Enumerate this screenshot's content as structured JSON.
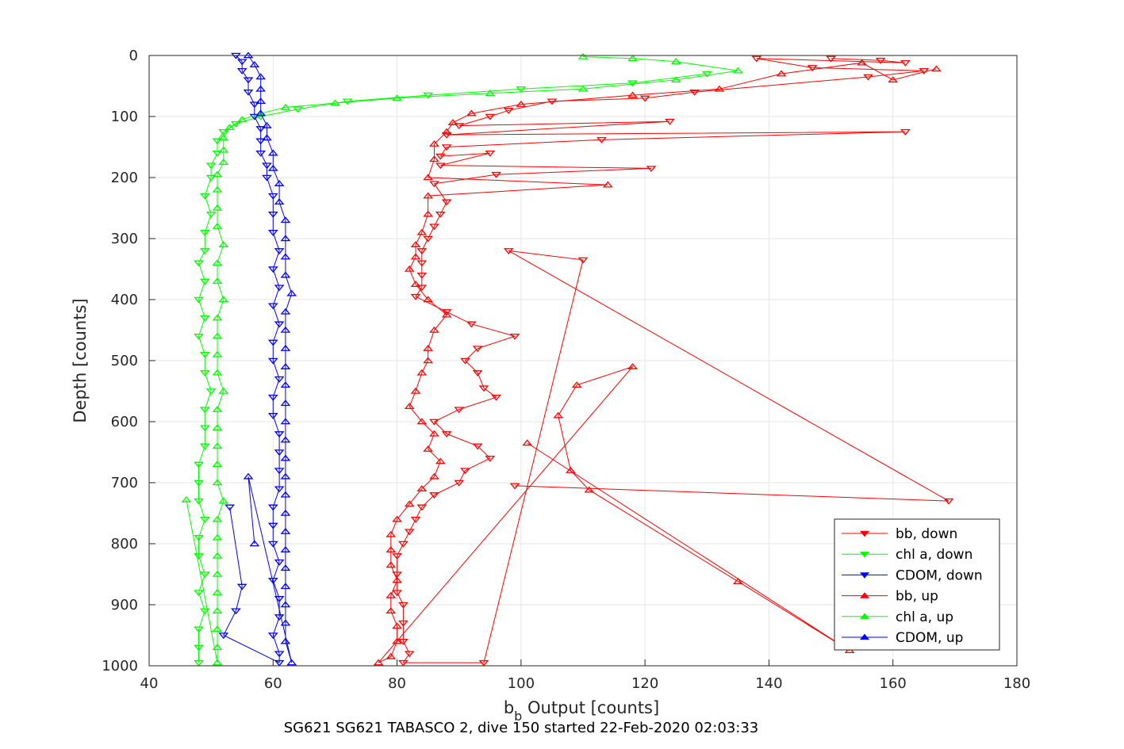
{
  "chart_data": {
    "type": "scatter",
    "title": "",
    "caption": "SG621 SG621 TABASCO 2, dive 150 started 22-Feb-2020 02:03:33",
    "xlabel_main": "b",
    "xlabel_sub": "b",
    "xlabel_rest": " Output [counts]",
    "ylabel": "Depth [counts]",
    "xlim": [
      40,
      180
    ],
    "ylim": [
      0,
      1000
    ],
    "y_reversed": true,
    "xticks": [
      40,
      60,
      80,
      100,
      120,
      140,
      160,
      180
    ],
    "yticks": [
      0,
      100,
      200,
      300,
      400,
      500,
      600,
      700,
      800,
      900,
      1000
    ],
    "grid": true,
    "legend_position": "bottom-right",
    "series": [
      {
        "name": "bb, down",
        "color": "#ff0000",
        "marker": "triangle-down",
        "points": [
          [
            150,
            5
          ],
          [
            158,
            8
          ],
          [
            162,
            12
          ],
          [
            138,
            5
          ],
          [
            147,
            20
          ],
          [
            165,
            25
          ],
          [
            156,
            35
          ],
          [
            128,
            60
          ],
          [
            120,
            70
          ],
          [
            105,
            75
          ],
          [
            98,
            90
          ],
          [
            95,
            100
          ],
          [
            90,
            115
          ],
          [
            124,
            108
          ],
          [
            88,
            130
          ],
          [
            162,
            125
          ],
          [
            113,
            138
          ],
          [
            88,
            150
          ],
          [
            87,
            165
          ],
          [
            95,
            160
          ],
          [
            87,
            180
          ],
          [
            121,
            185
          ],
          [
            96,
            195
          ],
          [
            86,
            210
          ],
          [
            88,
            240
          ],
          [
            87,
            260
          ],
          [
            86,
            280
          ],
          [
            85,
            300
          ],
          [
            84,
            320
          ],
          [
            84,
            340
          ],
          [
            84,
            360
          ],
          [
            84,
            380
          ],
          [
            83,
            395
          ],
          [
            88,
            420
          ],
          [
            92,
            440
          ],
          [
            99,
            460
          ],
          [
            93,
            480
          ],
          [
            91,
            500
          ],
          [
            93,
            520
          ],
          [
            94,
            545
          ],
          [
            96,
            560
          ],
          [
            90,
            580
          ],
          [
            86,
            600
          ],
          [
            88,
            620
          ],
          [
            93,
            640
          ],
          [
            95,
            660
          ],
          [
            91,
            680
          ],
          [
            90,
            700
          ],
          [
            86,
            720
          ],
          [
            84,
            740
          ],
          [
            83,
            760
          ],
          [
            82,
            780
          ],
          [
            81,
            800
          ],
          [
            80,
            820
          ],
          [
            80,
            850
          ],
          [
            80,
            880
          ],
          [
            81,
            900
          ],
          [
            81,
            930
          ],
          [
            81,
            960
          ],
          [
            82,
            980
          ],
          [
            81,
            995
          ],
          [
            94,
            995
          ],
          [
            110,
            335
          ],
          [
            98,
            320
          ],
          [
            169,
            730
          ],
          [
            99,
            705
          ]
        ]
      },
      {
        "name": "chl a, down",
        "color": "#00ff00",
        "marker": "triangle-down",
        "points": [
          [
            130,
            30
          ],
          [
            118,
            45
          ],
          [
            100,
            55
          ],
          [
            85,
            65
          ],
          [
            72,
            75
          ],
          [
            64,
            88
          ],
          [
            58,
            100
          ],
          [
            54,
            112
          ],
          [
            52,
            125
          ],
          [
            51,
            140
          ],
          [
            51,
            160
          ],
          [
            50,
            180
          ],
          [
            50,
            200
          ],
          [
            49,
            230
          ],
          [
            50,
            260
          ],
          [
            49,
            290
          ],
          [
            49,
            320
          ],
          [
            48,
            340
          ],
          [
            49,
            370
          ],
          [
            48,
            400
          ],
          [
            49,
            430
          ],
          [
            48,
            460
          ],
          [
            49,
            490
          ],
          [
            49,
            520
          ],
          [
            50,
            550
          ],
          [
            49,
            580
          ],
          [
            49,
            610
          ],
          [
            49,
            640
          ],
          [
            48,
            670
          ],
          [
            48,
            700
          ],
          [
            48,
            730
          ],
          [
            49,
            760
          ],
          [
            48,
            790
          ],
          [
            48,
            820
          ],
          [
            49,
            850
          ],
          [
            48,
            880
          ],
          [
            49,
            910
          ],
          [
            48,
            940
          ],
          [
            48,
            970
          ],
          [
            48,
            995
          ]
        ]
      },
      {
        "name": "CDOM, down",
        "color": "#0000ff",
        "marker": "triangle-down",
        "points": [
          [
            54,
            0
          ],
          [
            55,
            10
          ],
          [
            55,
            25
          ],
          [
            56,
            40
          ],
          [
            56,
            60
          ],
          [
            57,
            80
          ],
          [
            57,
            100
          ],
          [
            58,
            120
          ],
          [
            58,
            140
          ],
          [
            58,
            160
          ],
          [
            59,
            180
          ],
          [
            59,
            200
          ],
          [
            60,
            230
          ],
          [
            60,
            260
          ],
          [
            60,
            290
          ],
          [
            61,
            320
          ],
          [
            60,
            350
          ],
          [
            61,
            380
          ],
          [
            60,
            410
          ],
          [
            61,
            440
          ],
          [
            60,
            470
          ],
          [
            60,
            500
          ],
          [
            61,
            530
          ],
          [
            60,
            560
          ],
          [
            60,
            590
          ],
          [
            61,
            620
          ],
          [
            61,
            650
          ],
          [
            61,
            680
          ],
          [
            61,
            710
          ],
          [
            60,
            740
          ],
          [
            60,
            770
          ],
          [
            60,
            800
          ],
          [
            61,
            830
          ],
          [
            60,
            860
          ],
          [
            61,
            890
          ],
          [
            61,
            920
          ],
          [
            60,
            950
          ],
          [
            61,
            980
          ],
          [
            61,
            995
          ],
          [
            52,
            950
          ],
          [
            54,
            910
          ],
          [
            55,
            870
          ],
          [
            53,
            740
          ]
        ]
      },
      {
        "name": "bb, up",
        "color": "#ff0000",
        "marker": "triangle-up",
        "points": [
          [
            167,
            22
          ],
          [
            160,
            40
          ],
          [
            155,
            12
          ],
          [
            142,
            30
          ],
          [
            132,
            55
          ],
          [
            118,
            65
          ],
          [
            100,
            80
          ],
          [
            92,
            95
          ],
          [
            89,
            110
          ],
          [
            88,
            125
          ],
          [
            86,
            145
          ],
          [
            86,
            170
          ],
          [
            85,
            200
          ],
          [
            114,
            212
          ],
          [
            85,
            230
          ],
          [
            85,
            260
          ],
          [
            84,
            290
          ],
          [
            83,
            310
          ],
          [
            83,
            330
          ],
          [
            82,
            350
          ],
          [
            83,
            375
          ],
          [
            85,
            400
          ],
          [
            88,
            425
          ],
          [
            86,
            450
          ],
          [
            85,
            480
          ],
          [
            85,
            500
          ],
          [
            84,
            520
          ],
          [
            83,
            550
          ],
          [
            82,
            575
          ],
          [
            84,
            600
          ],
          [
            86,
            620
          ],
          [
            85,
            645
          ],
          [
            87,
            665
          ],
          [
            86,
            690
          ],
          [
            84,
            710
          ],
          [
            82,
            735
          ],
          [
            80,
            760
          ],
          [
            79,
            785
          ],
          [
            79,
            810
          ],
          [
            79,
            835
          ],
          [
            80,
            860
          ],
          [
            79,
            885
          ],
          [
            79,
            910
          ],
          [
            80,
            935
          ],
          [
            80,
            960
          ],
          [
            79,
            985
          ],
          [
            77,
            995
          ],
          [
            118,
            510
          ],
          [
            109,
            540
          ],
          [
            106,
            590
          ],
          [
            108,
            680
          ],
          [
            111,
            712
          ],
          [
            135,
            862
          ],
          [
            153,
            975
          ],
          [
            101,
            635
          ]
        ]
      },
      {
        "name": "chl a, up",
        "color": "#00ff00",
        "marker": "triangle-up",
        "points": [
          [
            110,
            2
          ],
          [
            118,
            5
          ],
          [
            125,
            10
          ],
          [
            135,
            25
          ],
          [
            125,
            40
          ],
          [
            110,
            55
          ],
          [
            95,
            62
          ],
          [
            80,
            70
          ],
          [
            70,
            78
          ],
          [
            62,
            85
          ],
          [
            58,
            95
          ],
          [
            55,
            105
          ],
          [
            53,
            118
          ],
          [
            52,
            135
          ],
          [
            52,
            155
          ],
          [
            52,
            175
          ],
          [
            51,
            195
          ],
          [
            51,
            220
          ],
          [
            51,
            250
          ],
          [
            51,
            280
          ],
          [
            52,
            310
          ],
          [
            51,
            340
          ],
          [
            51,
            370
          ],
          [
            52,
            400
          ],
          [
            51,
            430
          ],
          [
            51,
            460
          ],
          [
            51,
            490
          ],
          [
            51,
            520
          ],
          [
            52,
            550
          ],
          [
            51,
            580
          ],
          [
            51,
            610
          ],
          [
            51,
            640
          ],
          [
            51,
            670
          ],
          [
            51,
            700
          ],
          [
            52,
            730
          ],
          [
            51,
            760
          ],
          [
            51,
            790
          ],
          [
            51,
            820
          ],
          [
            51,
            850
          ],
          [
            51,
            880
          ],
          [
            51,
            910
          ],
          [
            51,
            940
          ],
          [
            51,
            970
          ],
          [
            51,
            995
          ],
          [
            46,
            728
          ]
        ]
      },
      {
        "name": "CDOM, up",
        "color": "#0000ff",
        "marker": "triangle-up",
        "points": [
          [
            56,
            0
          ],
          [
            57,
            15
          ],
          [
            58,
            35
          ],
          [
            58,
            55
          ],
          [
            58,
            75
          ],
          [
            58,
            95
          ],
          [
            59,
            115
          ],
          [
            59,
            135
          ],
          [
            60,
            160
          ],
          [
            60,
            185
          ],
          [
            61,
            210
          ],
          [
            61,
            240
          ],
          [
            62,
            270
          ],
          [
            62,
            300
          ],
          [
            62,
            330
          ],
          [
            62,
            360
          ],
          [
            63,
            390
          ],
          [
            62,
            420
          ],
          [
            62,
            450
          ],
          [
            62,
            480
          ],
          [
            62,
            510
          ],
          [
            62,
            540
          ],
          [
            62,
            570
          ],
          [
            62,
            600
          ],
          [
            62,
            630
          ],
          [
            62,
            660
          ],
          [
            62,
            690
          ],
          [
            62,
            720
          ],
          [
            62,
            750
          ],
          [
            62,
            780
          ],
          [
            62,
            810
          ],
          [
            62,
            840
          ],
          [
            62,
            870
          ],
          [
            62,
            900
          ],
          [
            62,
            930
          ],
          [
            62,
            960
          ],
          [
            63,
            995
          ],
          [
            56,
            690
          ],
          [
            57,
            800
          ]
        ]
      }
    ]
  }
}
